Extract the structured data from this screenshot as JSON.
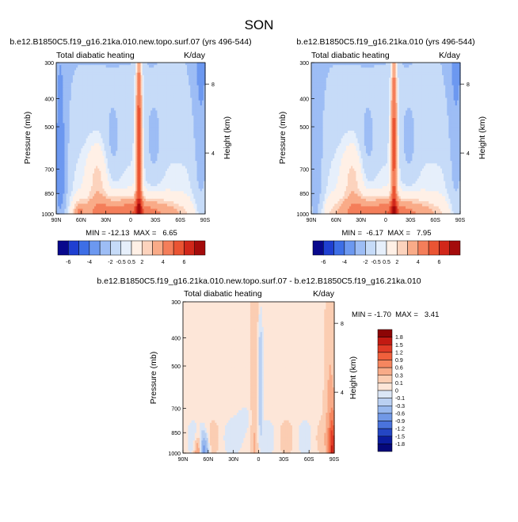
{
  "page_title": "SON",
  "cb_top_labels": [
    "-6",
    "-4",
    "-2",
    "-0.5",
    "0.5",
    "2",
    "4",
    "6"
  ],
  "cb_top_colors": [
    "#08088c",
    "#1f3fd1",
    "#3d6ee6",
    "#6c98f0",
    "#9dbdf5",
    "#c6dbf8",
    "#e6effb",
    "#fff0e6",
    "#fcd3bd",
    "#f9ab88",
    "#f47e5a",
    "#ea5433",
    "#d1271a",
    "#a40b0b"
  ],
  "cb_diff_labels": [
    "1.8",
    "1.5",
    "1.2",
    "0.9",
    "0.6",
    "0.3",
    "0.1",
    "0",
    "-0.1",
    "-0.3",
    "-0.6",
    "-0.9",
    "-1.2",
    "-1.5",
    "-1.8"
  ],
  "cb_diff_colors": [
    "#8c0505",
    "#c21a12",
    "#e03b26",
    "#f0603c",
    "#f5865f",
    "#f8ab88",
    "#fbcdb2",
    "#fde6d8",
    "#dbe6f6",
    "#bad0f2",
    "#98b8ee",
    "#7198e6",
    "#4a73dc",
    "#2446c4",
    "#0b1c9e",
    "#05087a"
  ],
  "chart_data": [
    {
      "type": "heatmap",
      "title": "b.e12.B1850C5.f19_g16.21ka.010.new.topo.surf.07 (yrs 496-544)",
      "left_string": "Total diabatic heating",
      "right_string": "K/day",
      "ylabel": "Pressure (mb)",
      "ylabel_right": "Height (km)",
      "x_ticks": [
        "90N",
        "60N",
        "30N",
        "0",
        "30S",
        "60S",
        "90S"
      ],
      "y_ticks": [
        "300",
        "400",
        "500",
        "700",
        "850",
        "1000"
      ],
      "y_right_ticks": [
        "8",
        "4"
      ],
      "min": -12.13,
      "max": 6.65,
      "stats": "MIN = -12.13  MAX =   6.65"
    },
    {
      "type": "heatmap",
      "title": "b.e12.B1850C5.f19_g16.21ka.010 (yrs 496-544)",
      "left_string": "Total diabatic heating",
      "right_string": "K/day",
      "ylabel": "Pressure (mb)",
      "ylabel_right": "Height (km)",
      "x_ticks": [
        "90N",
        "60N",
        "30N",
        "0",
        "30S",
        "60S",
        "90S"
      ],
      "y_ticks": [
        "300",
        "400",
        "500",
        "700",
        "850",
        "1000"
      ],
      "y_right_ticks": [
        "8",
        "4"
      ],
      "min": -6.17,
      "max": 7.95,
      "stats": "MIN =  -6.17  MAX =   7.95"
    },
    {
      "type": "heatmap",
      "title": "b.e12.B1850C5.f19_g16.21ka.010.new.topo.surf.07 - b.e12.B1850C5.f19_g16.21ka.010",
      "left_string": "Total diabatic heating",
      "right_string": "K/day",
      "ylabel": "Pressure (mb)",
      "ylabel_right": "Height (km)",
      "x_ticks": [
        "90N",
        "60N",
        "30N",
        "0",
        "30S",
        "60S",
        "90S"
      ],
      "y_ticks": [
        "300",
        "400",
        "500",
        "700",
        "850",
        "1000"
      ],
      "y_right_ticks": [
        "8",
        "4"
      ],
      "min": -1.7,
      "max": 3.41,
      "stats": "MIN = -1.70  MAX =   3.41"
    }
  ]
}
